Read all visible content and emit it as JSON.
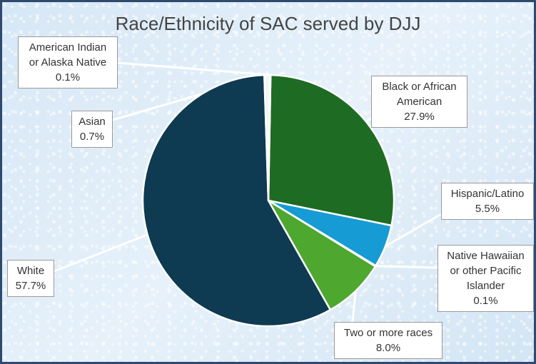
{
  "chart_data": {
    "type": "pie",
    "title": "Race/Ethnicity of SAC  served by DJJ",
    "slices": [
      {
        "label_lines": [
          "Black or African",
          "American"
        ],
        "pct_text": "27.9%",
        "value": 27.9,
        "color": "#1e6b24"
      },
      {
        "label_lines": [
          "Hispanic/Latino"
        ],
        "pct_text": "5.5%",
        "value": 5.5,
        "color": "#169bd5"
      },
      {
        "label_lines": [
          "Native Hawaiian",
          "or other Pacific",
          "Islander"
        ],
        "pct_text": "0.1%",
        "value": 0.1,
        "color": "#d9d9d9"
      },
      {
        "label_lines": [
          "Two or more races"
        ],
        "pct_text": "8.0%",
        "value": 8.0,
        "color": "#4ea72e"
      },
      {
        "label_lines": [
          "White"
        ],
        "pct_text": "57.7%",
        "value": 57.7,
        "color": "#0e3a52"
      },
      {
        "label_lines": [
          "Asian"
        ],
        "pct_text": "0.7%",
        "value": 0.7,
        "color": "#f4f4f4"
      },
      {
        "label_lines": [
          "American Indian",
          "or Alaska Native"
        ],
        "pct_text": "0.1%",
        "value": 0.1,
        "color": "#e97132"
      }
    ]
  }
}
